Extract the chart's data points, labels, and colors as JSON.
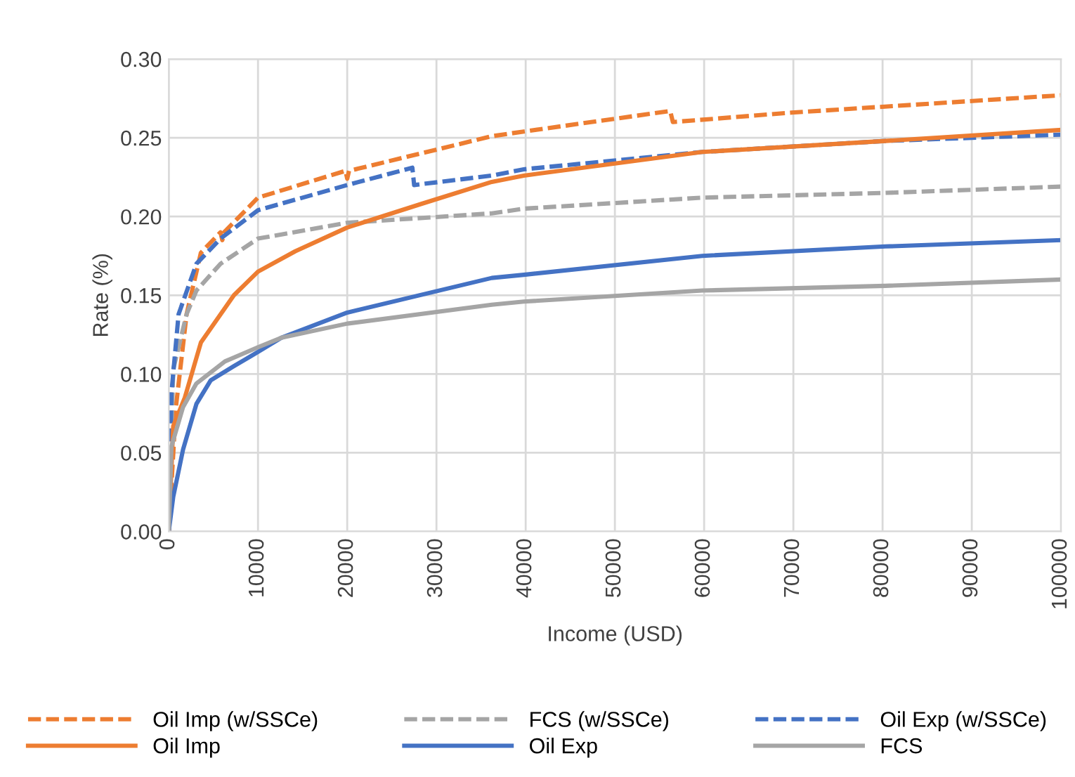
{
  "chart_data": {
    "type": "line",
    "xlabel": "Income (USD)",
    "ylabel": "Rate (%)",
    "xlim": [
      0,
      100000
    ],
    "xticks": [
      0,
      10000,
      20000,
      30000,
      40000,
      50000,
      60000,
      70000,
      80000,
      90000,
      100000
    ],
    "ylim": [
      0,
      0.3
    ],
    "yticks": [
      {
        "value": 0,
        "label": "0.00"
      },
      {
        "value": 0.05,
        "label": "0.05"
      },
      {
        "value": 0.1,
        "label": "0.10"
      },
      {
        "value": 0.15,
        "label": "0.15"
      },
      {
        "value": 0.2,
        "label": "0.20"
      },
      {
        "value": 0.25,
        "label": "0.25"
      },
      {
        "value": 0.3,
        "label": "0.30"
      }
    ],
    "grid": true,
    "legend": "bottom",
    "series": [
      {
        "name": "Oil Imp (w/SSCe)",
        "color": "#ed7d31",
        "line_style": "dashed",
        "x": [
          0,
          800,
          2000,
          3600,
          5800,
          6000,
          6200,
          10000,
          19800,
          20000,
          20200,
          36200,
          39800,
          56200,
          56500,
          69800,
          100000
        ],
        "values": [
          0,
          0.079,
          0.138,
          0.177,
          0.19,
          0.185,
          0.19,
          0.212,
          0.229,
          0.224,
          0.229,
          0.251,
          0.254,
          0.267,
          0.26,
          0.266,
          0.277
        ]
      },
      {
        "name": "FCS (w/SSCe)",
        "color": "#a5a5a5",
        "line_style": "dashed",
        "x": [
          0,
          500,
          2000,
          3100,
          5800,
          10000,
          20000,
          36200,
          39800,
          59800,
          80300,
          100000
        ],
        "values": [
          0,
          0.103,
          0.138,
          0.153,
          0.17,
          0.186,
          0.196,
          0.202,
          0.205,
          0.212,
          0.215,
          0.219
        ]
      },
      {
        "name": "Oil Exp (w/SSCe)",
        "color": "#4472c4",
        "line_style": "dashed",
        "x": [
          0,
          300,
          1100,
          3100,
          5800,
          10000,
          20000,
          27300,
          27500,
          36200,
          39800,
          59800,
          80300,
          100000
        ],
        "values": [
          0,
          0.088,
          0.138,
          0.17,
          0.186,
          0.204,
          0.22,
          0.231,
          0.22,
          0.226,
          0.23,
          0.241,
          0.248,
          0.252
        ]
      },
      {
        "name": "Oil Imp",
        "color": "#ed7d31",
        "line_style": "solid",
        "x": [
          0,
          500,
          1800,
          3600,
          7300,
          10000,
          14200,
          20000,
          28300,
          36200,
          39800,
          59800,
          80300,
          100000
        ],
        "values": [
          0,
          0.067,
          0.085,
          0.12,
          0.15,
          0.165,
          0.178,
          0.193,
          0.208,
          0.222,
          0.226,
          0.241,
          0.248,
          0.255
        ]
      },
      {
        "name": "Oil Exp",
        "color": "#4472c4",
        "line_style": "solid",
        "x": [
          0,
          500,
          1600,
          3100,
          4700,
          7300,
          10000,
          12600,
          20000,
          36200,
          39800,
          59800,
          80300,
          100000
        ],
        "values": [
          0,
          0.022,
          0.052,
          0.081,
          0.096,
          0.105,
          0.114,
          0.123,
          0.139,
          0.161,
          0.163,
          0.175,
          0.181,
          0.185
        ]
      },
      {
        "name": "FCS",
        "color": "#a5a5a5",
        "line_style": "solid",
        "x": [
          0,
          300,
          1600,
          3100,
          6300,
          10000,
          12600,
          20000,
          36200,
          39800,
          59800,
          80300,
          100000
        ],
        "values": [
          0,
          0.054,
          0.079,
          0.094,
          0.108,
          0.117,
          0.123,
          0.132,
          0.144,
          0.146,
          0.153,
          0.156,
          0.16
        ]
      }
    ]
  }
}
